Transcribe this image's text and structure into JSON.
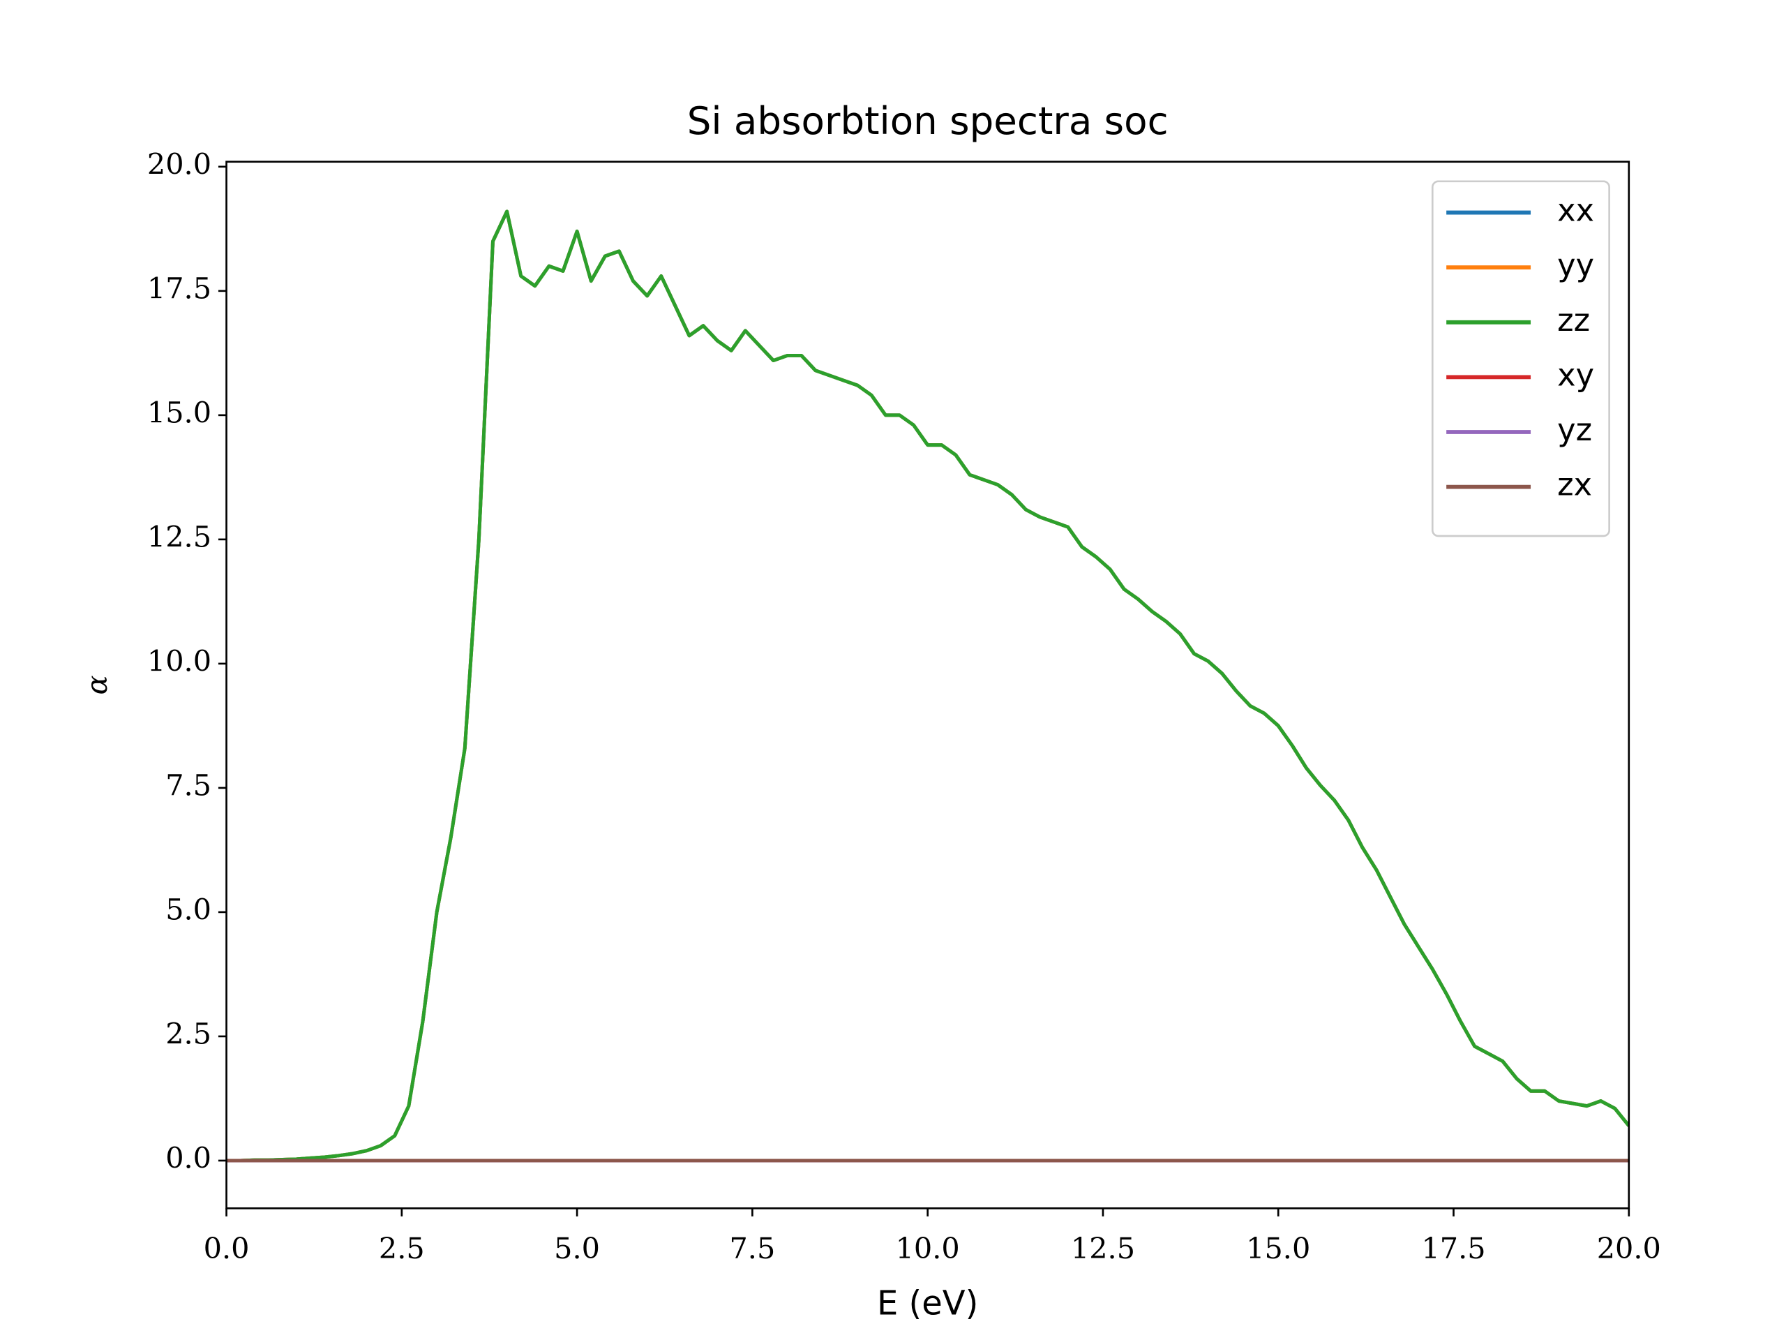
{
  "chart_data": {
    "type": "line",
    "title": "Si absorbtion spectra soc",
    "xlabel": "E (eV)",
    "ylabel": "α",
    "x": [
      0,
      0.2,
      0.4,
      0.6,
      0.8,
      1.0,
      1.2,
      1.4,
      1.6,
      1.8,
      2.0,
      2.2,
      2.4,
      2.6,
      2.8,
      3.0,
      3.2,
      3.4,
      3.6,
      3.8,
      4.0,
      4.2,
      4.4,
      4.6,
      4.8,
      5.0,
      5.2,
      5.4,
      5.6,
      5.8,
      6.0,
      6.2,
      6.4,
      6.6,
      6.8,
      7.0,
      7.2,
      7.4,
      7.6,
      7.8,
      8.0,
      8.2,
      8.4,
      8.6,
      8.8,
      9.0,
      9.2,
      9.4,
      9.6,
      9.8,
      10.0,
      10.2,
      10.4,
      10.6,
      10.8,
      11.0,
      11.2,
      11.4,
      11.6,
      11.8,
      12.0,
      12.2,
      12.4,
      12.6,
      12.8,
      13.0,
      13.2,
      13.4,
      13.6,
      13.8,
      14.0,
      14.2,
      14.4,
      14.6,
      14.8,
      15.0,
      15.2,
      15.4,
      15.6,
      15.8,
      16.0,
      16.2,
      16.4,
      16.6,
      16.8,
      17.0,
      17.2,
      17.4,
      17.6,
      17.8,
      18.0,
      18.2,
      18.4,
      18.6,
      18.8,
      19.0,
      19.2,
      19.4,
      19.6,
      19.8,
      20.0
    ],
    "series": [
      {
        "name": "xx",
        "color": "#1f77b4",
        "values": [
          0,
          0,
          0.01,
          0.01,
          0.02,
          0.03,
          0.05,
          0.07,
          0.1,
          0.14,
          0.2,
          0.3,
          0.5,
          1.1,
          2.8,
          5.0,
          6.5,
          8.3,
          12.5,
          18.5,
          19.1,
          17.8,
          17.6,
          18.0,
          17.9,
          18.7,
          17.7,
          18.2,
          18.3,
          17.7,
          17.4,
          17.8,
          17.2,
          16.6,
          16.8,
          16.5,
          16.3,
          16.7,
          16.4,
          16.1,
          16.2,
          16.2,
          15.9,
          15.8,
          15.7,
          15.6,
          15.4,
          15.0,
          15.0,
          14.8,
          14.4,
          14.4,
          14.2,
          13.8,
          13.7,
          13.6,
          13.4,
          13.1,
          12.95,
          12.85,
          12.75,
          12.35,
          12.15,
          11.9,
          11.5,
          11.3,
          11.05,
          10.85,
          10.6,
          10.2,
          10.05,
          9.8,
          9.45,
          9.15,
          9.0,
          8.75,
          8.35,
          7.9,
          7.55,
          7.25,
          6.85,
          6.3,
          5.85,
          5.3,
          4.75,
          4.3,
          3.85,
          3.35,
          2.8,
          2.3,
          2.15,
          2.0,
          1.65,
          1.4,
          1.4,
          1.2,
          1.15,
          1.1,
          1.2,
          1.05,
          0.7
        ]
      },
      {
        "name": "yy",
        "color": "#ff7f0e",
        "values": [
          0,
          0,
          0.01,
          0.01,
          0.02,
          0.03,
          0.05,
          0.07,
          0.1,
          0.14,
          0.2,
          0.3,
          0.5,
          1.1,
          2.8,
          5.0,
          6.5,
          8.3,
          12.5,
          18.5,
          19.1,
          17.8,
          17.6,
          18.0,
          17.9,
          18.7,
          17.7,
          18.2,
          18.3,
          17.7,
          17.4,
          17.8,
          17.2,
          16.6,
          16.8,
          16.5,
          16.3,
          16.7,
          16.4,
          16.1,
          16.2,
          16.2,
          15.9,
          15.8,
          15.7,
          15.6,
          15.4,
          15.0,
          15.0,
          14.8,
          14.4,
          14.4,
          14.2,
          13.8,
          13.7,
          13.6,
          13.4,
          13.1,
          12.95,
          12.85,
          12.75,
          12.35,
          12.15,
          11.9,
          11.5,
          11.3,
          11.05,
          10.85,
          10.6,
          10.2,
          10.05,
          9.8,
          9.45,
          9.15,
          9.0,
          8.75,
          8.35,
          7.9,
          7.55,
          7.25,
          6.85,
          6.3,
          5.85,
          5.3,
          4.75,
          4.3,
          3.85,
          3.35,
          2.8,
          2.3,
          2.15,
          2.0,
          1.65,
          1.4,
          1.4,
          1.2,
          1.15,
          1.1,
          1.2,
          1.05,
          0.7
        ]
      },
      {
        "name": "zz",
        "color": "#2ca02c",
        "values": [
          0,
          0,
          0.01,
          0.01,
          0.02,
          0.03,
          0.05,
          0.07,
          0.1,
          0.14,
          0.2,
          0.3,
          0.5,
          1.1,
          2.8,
          5.0,
          6.5,
          8.3,
          12.5,
          18.5,
          19.1,
          17.8,
          17.6,
          18.0,
          17.9,
          18.7,
          17.7,
          18.2,
          18.3,
          17.7,
          17.4,
          17.8,
          17.2,
          16.6,
          16.8,
          16.5,
          16.3,
          16.7,
          16.4,
          16.1,
          16.2,
          16.2,
          15.9,
          15.8,
          15.7,
          15.6,
          15.4,
          15.0,
          15.0,
          14.8,
          14.4,
          14.4,
          14.2,
          13.8,
          13.7,
          13.6,
          13.4,
          13.1,
          12.95,
          12.85,
          12.75,
          12.35,
          12.15,
          11.9,
          11.5,
          11.3,
          11.05,
          10.85,
          10.6,
          10.2,
          10.05,
          9.8,
          9.45,
          9.15,
          9.0,
          8.75,
          8.35,
          7.9,
          7.55,
          7.25,
          6.85,
          6.3,
          5.85,
          5.3,
          4.75,
          4.3,
          3.85,
          3.35,
          2.8,
          2.3,
          2.15,
          2.0,
          1.65,
          1.4,
          1.4,
          1.2,
          1.15,
          1.1,
          1.2,
          1.05,
          0.7
        ]
      },
      {
        "name": "xy",
        "color": "#d62728",
        "values": [
          0,
          0,
          0,
          0,
          0,
          0,
          0,
          0,
          0,
          0,
          0,
          0,
          0,
          0,
          0,
          0,
          0,
          0,
          0,
          0,
          0,
          0,
          0,
          0,
          0,
          0,
          0,
          0,
          0,
          0,
          0,
          0,
          0,
          0,
          0,
          0,
          0,
          0,
          0,
          0,
          0,
          0,
          0,
          0,
          0,
          0,
          0,
          0,
          0,
          0,
          0,
          0,
          0,
          0,
          0,
          0,
          0,
          0,
          0,
          0,
          0,
          0,
          0,
          0,
          0,
          0,
          0,
          0,
          0,
          0,
          0,
          0,
          0,
          0,
          0,
          0,
          0,
          0,
          0,
          0,
          0,
          0,
          0,
          0,
          0,
          0,
          0,
          0,
          0,
          0,
          0,
          0,
          0,
          0,
          0,
          0,
          0,
          0,
          0,
          0,
          0
        ]
      },
      {
        "name": "yz",
        "color": "#9467bd",
        "values": [
          0,
          0,
          0,
          0,
          0,
          0,
          0,
          0,
          0,
          0,
          0,
          0,
          0,
          0,
          0,
          0,
          0,
          0,
          0,
          0,
          0,
          0,
          0,
          0,
          0,
          0,
          0,
          0,
          0,
          0,
          0,
          0,
          0,
          0,
          0,
          0,
          0,
          0,
          0,
          0,
          0,
          0,
          0,
          0,
          0,
          0,
          0,
          0,
          0,
          0,
          0,
          0,
          0,
          0,
          0,
          0,
          0,
          0,
          0,
          0,
          0,
          0,
          0,
          0,
          0,
          0,
          0,
          0,
          0,
          0,
          0,
          0,
          0,
          0,
          0,
          0,
          0,
          0,
          0,
          0,
          0,
          0,
          0,
          0,
          0,
          0,
          0,
          0,
          0,
          0,
          0,
          0,
          0,
          0,
          0,
          0,
          0,
          0,
          0,
          0,
          0
        ]
      },
      {
        "name": "zx",
        "color": "#8c564b",
        "values": [
          0,
          0,
          0,
          0,
          0,
          0,
          0,
          0,
          0,
          0,
          0,
          0,
          0,
          0,
          0,
          0,
          0,
          0,
          0,
          0,
          0,
          0,
          0,
          0,
          0,
          0,
          0,
          0,
          0,
          0,
          0,
          0,
          0,
          0,
          0,
          0,
          0,
          0,
          0,
          0,
          0,
          0,
          0,
          0,
          0,
          0,
          0,
          0,
          0,
          0,
          0,
          0,
          0,
          0,
          0,
          0,
          0,
          0,
          0,
          0,
          0,
          0,
          0,
          0,
          0,
          0,
          0,
          0,
          0,
          0,
          0,
          0,
          0,
          0,
          0,
          0,
          0,
          0,
          0,
          0,
          0,
          0,
          0,
          0,
          0,
          0,
          0,
          0,
          0,
          0,
          0,
          0,
          0,
          0,
          0,
          0,
          0,
          0,
          0,
          0,
          0
        ]
      }
    ],
    "xlim": [
      0,
      20
    ],
    "ylim": [
      -0.96,
      20.1
    ],
    "xticks": [
      {
        "value": 0,
        "label": "0.0"
      },
      2.5,
      {
        "value": 5,
        "label": "5.0"
      },
      7.5,
      {
        "value": 10,
        "label": "10.0"
      },
      12.5,
      {
        "value": 15,
        "label": "15.0"
      },
      17.5,
      {
        "value": 20,
        "label": "20.0"
      }
    ],
    "yticks": [
      {
        "value": 0,
        "label": "0.0"
      },
      2.5,
      {
        "value": 5,
        "label": "5.0"
      },
      7.5,
      {
        "value": 10,
        "label": "10.0"
      },
      12.5,
      {
        "value": 15,
        "label": "15.0"
      },
      17.5,
      {
        "value": 20,
        "label": "20.0"
      }
    ],
    "grid": false,
    "legend": "upper right"
  }
}
